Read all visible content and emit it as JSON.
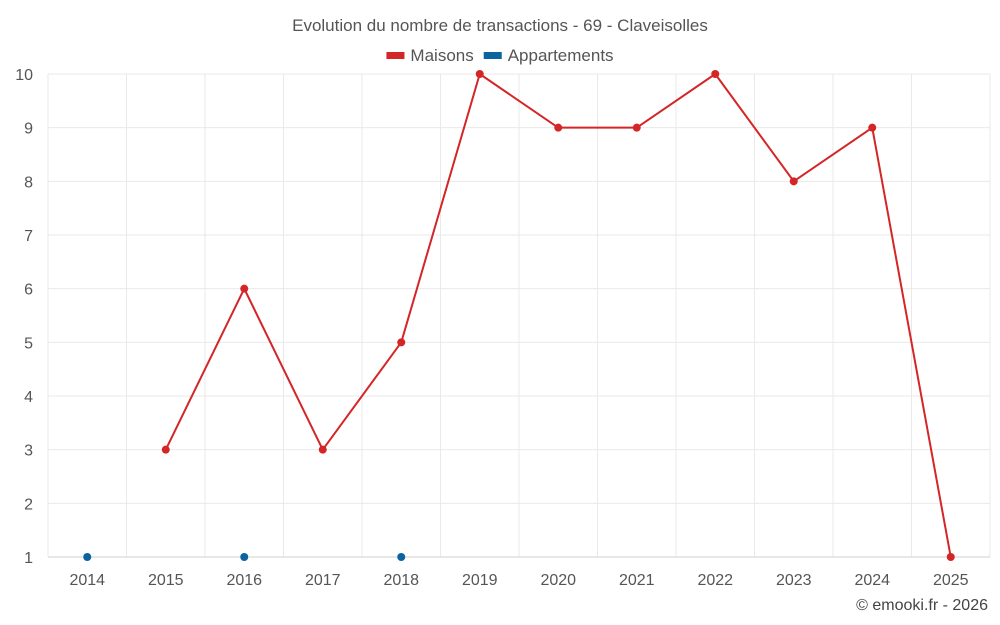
{
  "chart_data": {
    "type": "line",
    "title": "Evolution du nombre de transactions - 69 - Claveisolles",
    "categories": [
      "2014",
      "2015",
      "2016",
      "2017",
      "2018",
      "2019",
      "2020",
      "2021",
      "2022",
      "2023",
      "2024",
      "2025"
    ],
    "ylim": [
      1,
      10
    ],
    "yticks": [
      "1",
      "2",
      "3",
      "4",
      "5",
      "6",
      "7",
      "8",
      "9",
      "10"
    ],
    "grid": true,
    "legend_position": "top-center",
    "series": [
      {
        "name": "Maisons",
        "color": "#d42527",
        "values": [
          null,
          3,
          6,
          3,
          5,
          10,
          9,
          9,
          10,
          8,
          9,
          1
        ]
      },
      {
        "name": "Appartements",
        "color": "#0b63a0",
        "values": [
          1,
          null,
          1,
          null,
          1,
          null,
          null,
          null,
          null,
          null,
          null,
          null
        ]
      }
    ]
  },
  "credit": "© emooki.fr - 2026"
}
